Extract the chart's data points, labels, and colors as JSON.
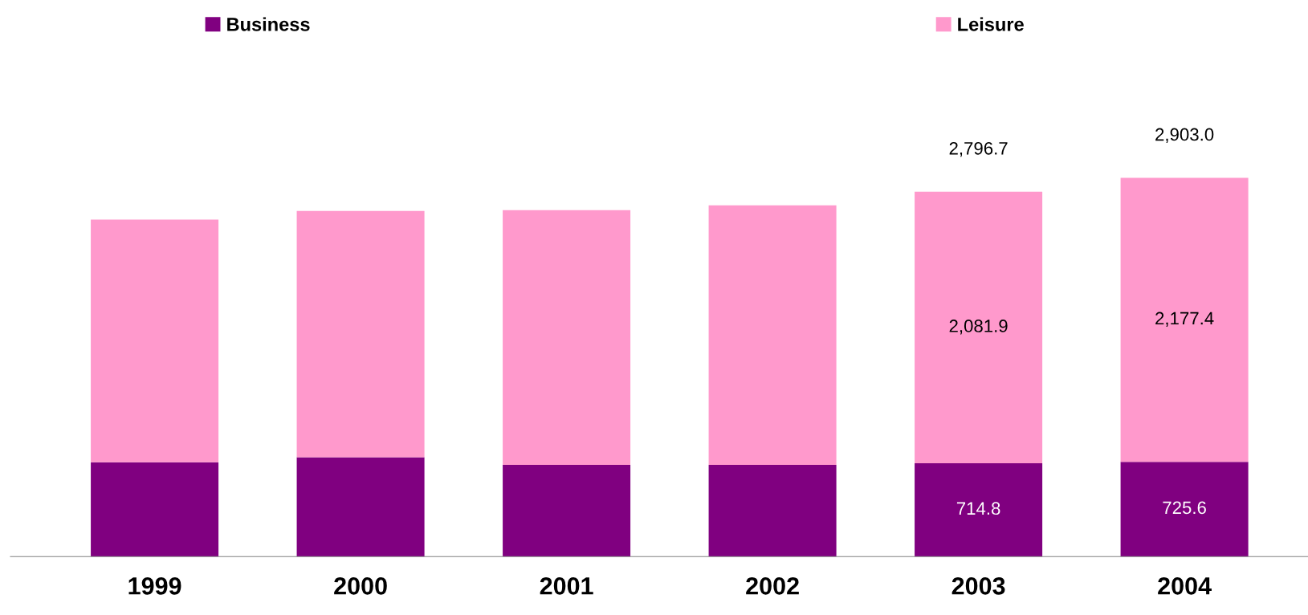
{
  "chart_data": {
    "type": "bar",
    "stacked": true,
    "categories": [
      "1999",
      "2000",
      "2001",
      "2002",
      "2003",
      "2004"
    ],
    "series": [
      {
        "name": "Business",
        "color": "#800080",
        "values": [
          723,
          761,
          703,
          703,
          714.8,
          725.6
        ],
        "value_labels": [
          null,
          null,
          null,
          null,
          "714.8",
          "725.6"
        ]
      },
      {
        "name": "Leisure",
        "color": "#ff99cc",
        "values": [
          1860,
          1887,
          1952,
          1988,
          2081.9,
          2177.4
        ],
        "value_labels": [
          null,
          null,
          null,
          null,
          "2,081.9",
          "2,177.4"
        ]
      }
    ],
    "totals": [
      null,
      null,
      null,
      null,
      "2,796.7",
      "2,903.0"
    ],
    "tick_labels": "x",
    "grid": false,
    "legend": "top"
  }
}
